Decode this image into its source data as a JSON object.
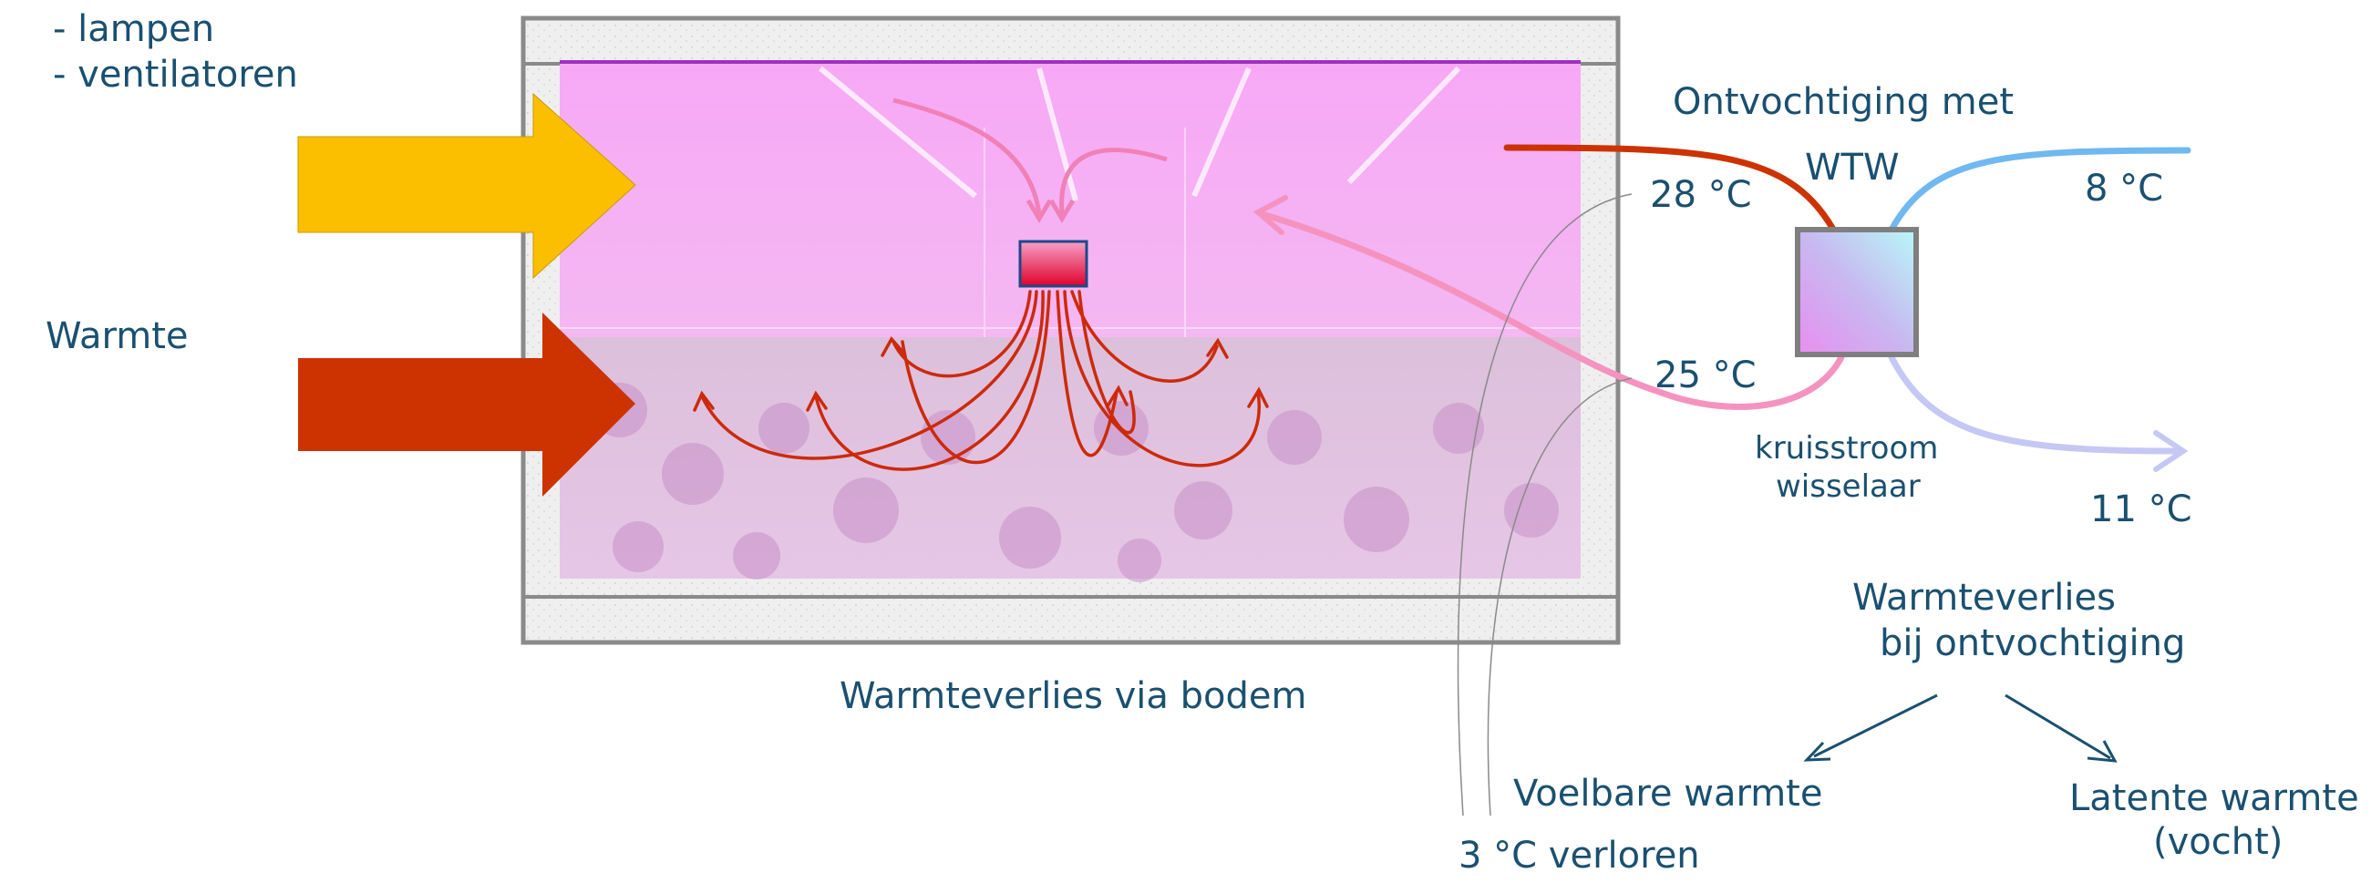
{
  "sources": {
    "line1": "- lampen",
    "line2": "- ventilatoren"
  },
  "heat_label": "Warmte",
  "floor_loss": "Warmteverlies via bodem",
  "wtw": {
    "title_line1": "Ontvochtiging met",
    "title_line2": "WTW",
    "exchanger_line1": "kruisstroom",
    "exchanger_line2": "wisselaar",
    "in_hot_temp": "28 °C",
    "return_temp": "25 °C",
    "outside_in_temp": "8 °C",
    "outside_out_temp": "11 °C"
  },
  "loss": {
    "title_line1": "Warmteverlies",
    "title_line2": "bij ontvochtiging",
    "sensible": "Voelbare warmte",
    "latent_line1": "Latente warmte",
    "latent_line2": "(vocht)",
    "lost": "3 °C verloren"
  },
  "colors": {
    "text": "#1a5070",
    "arrow_lamps": "#fbbf00",
    "arrow_heat": "#cc3300",
    "hot_pipe": "#cc3300",
    "cold_in_pipe": "#6fb8f0",
    "cold_out_pipe": "#c5c8f5",
    "return_pipe": "#f593c0",
    "wall": "#8a8a8a",
    "wall_fill": "#eeeeee",
    "room_top": "#f5b0f5",
    "room_bottom": "#d8b6dc"
  }
}
